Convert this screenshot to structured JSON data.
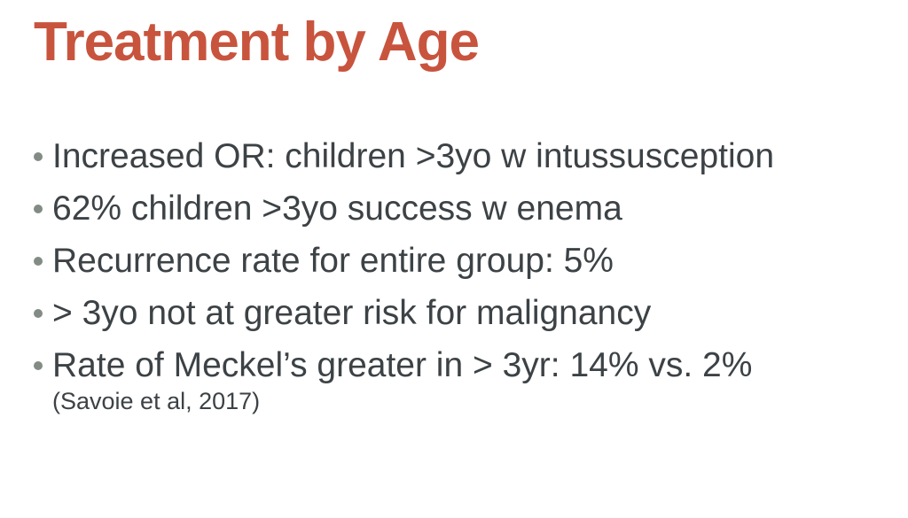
{
  "slide": {
    "title": "Treatment by Age",
    "bullets": [
      {
        "text": "Increased OR: children >3yo w intussusception"
      },
      {
        "text": "62% children >3yo success w enema"
      },
      {
        "text": "Recurrence rate for entire group: 5%"
      },
      {
        "text": "> 3yo not at greater risk for malignancy"
      },
      {
        "text": "Rate of Meckel’s greater in > 3yr: 14% vs. 2%",
        "note": "(Savoie et al, 2017)"
      }
    ],
    "colors": {
      "title": "#C8543E",
      "body_text": "#3C4245",
      "bullet_dot": "#828C85",
      "background": "#FFFFFF"
    }
  }
}
